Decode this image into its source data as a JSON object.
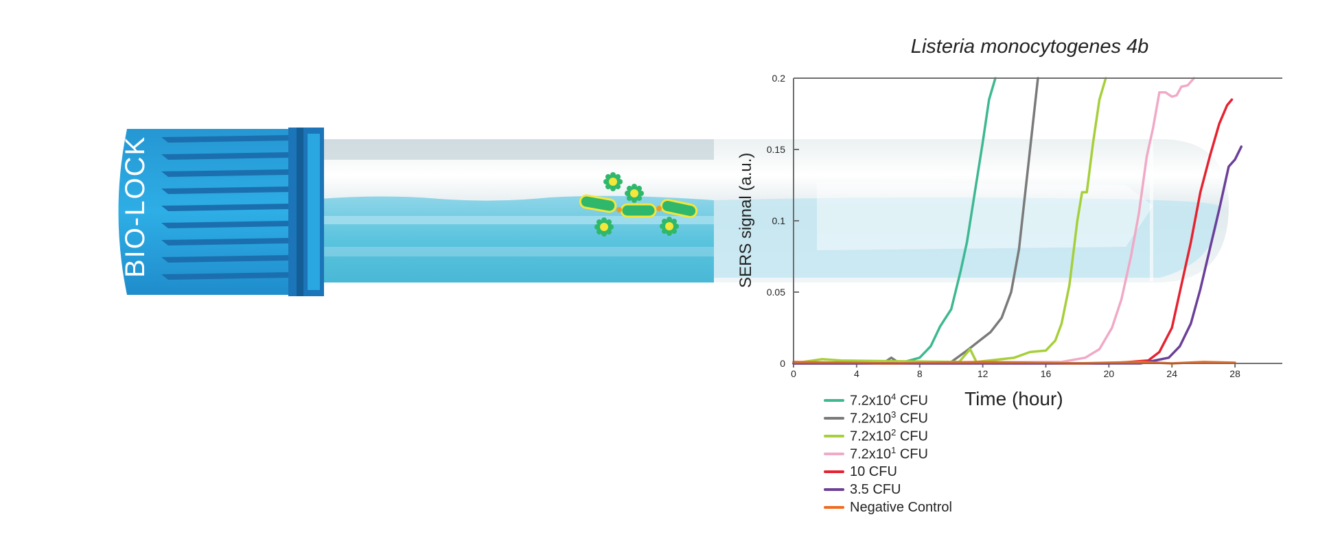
{
  "device": {
    "cap_label": "BIO-LOCK",
    "cap_color": "#2aa6e0",
    "cap_dark": "#1b75b8",
    "tube_liquid": "#5bc4de"
  },
  "chart_data": {
    "type": "line",
    "title": "Listeria monocytogenes 4b",
    "xlabel": "Time (hour)",
    "ylabel": "SERS signal (a.u.)",
    "xlim": [
      0,
      31
    ],
    "ylim": [
      0,
      0.2
    ],
    "xticks": [
      0,
      4,
      8,
      12,
      16,
      20,
      24,
      28
    ],
    "yticks": [
      0,
      0.05,
      0.1,
      0.15,
      0.2
    ],
    "ytick_labels": [
      "0",
      "0.05",
      "0.1",
      "0.15",
      "0.2"
    ],
    "grid": false,
    "legend_position": "bottom-left",
    "series": [
      {
        "name": "7.2x10^4 CFU",
        "base": "7.2x10",
        "exp": "4",
        "unit": " CFU",
        "color": "#3db891",
        "points": [
          [
            0,
            0
          ],
          [
            4,
            0
          ],
          [
            7,
            0.001
          ],
          [
            8,
            0.004
          ],
          [
            8.7,
            0.012
          ],
          [
            9.3,
            0.026
          ],
          [
            10,
            0.038
          ],
          [
            10.6,
            0.065
          ],
          [
            11,
            0.085
          ],
          [
            11.5,
            0.12
          ],
          [
            12,
            0.155
          ],
          [
            12.4,
            0.185
          ],
          [
            12.8,
            0.2
          ]
        ]
      },
      {
        "name": "7.2x10^3 CFU",
        "base": "7.2x10",
        "exp": "3",
        "unit": " CFU",
        "color": "#7a7a7a",
        "points": [
          [
            0,
            0
          ],
          [
            5.8,
            0.001
          ],
          [
            6.2,
            0.004
          ],
          [
            6.6,
            0.001
          ],
          [
            10,
            0.001
          ],
          [
            11,
            0.009
          ],
          [
            11.8,
            0.016
          ],
          [
            12.5,
            0.022
          ],
          [
            13.2,
            0.032
          ],
          [
            13.8,
            0.05
          ],
          [
            14.3,
            0.08
          ],
          [
            14.8,
            0.13
          ],
          [
            15.2,
            0.17
          ],
          [
            15.5,
            0.2
          ]
        ]
      },
      {
        "name": "7.2x10^2 CFU",
        "base": "7.2x10",
        "exp": "2",
        "unit": " CFU",
        "color": "#a6cf3a",
        "points": [
          [
            0,
            0
          ],
          [
            1.8,
            0.003
          ],
          [
            3,
            0.002
          ],
          [
            10.5,
            0.001
          ],
          [
            11.2,
            0.01
          ],
          [
            11.6,
            0.001
          ],
          [
            14,
            0.004
          ],
          [
            15,
            0.008
          ],
          [
            16,
            0.009
          ],
          [
            16.6,
            0.016
          ],
          [
            17,
            0.028
          ],
          [
            17.5,
            0.055
          ],
          [
            18,
            0.1
          ],
          [
            18.3,
            0.12
          ],
          [
            18.6,
            0.12
          ],
          [
            19,
            0.155
          ],
          [
            19.4,
            0.185
          ],
          [
            19.8,
            0.2
          ]
        ]
      },
      {
        "name": "7.2x10^1 CFU",
        "base": "7.2x10",
        "exp": "1",
        "unit": " CFU",
        "color": "#f0a9c6",
        "points": [
          [
            0,
            0
          ],
          [
            17,
            0.001
          ],
          [
            18.5,
            0.004
          ],
          [
            19.4,
            0.01
          ],
          [
            20.2,
            0.025
          ],
          [
            20.8,
            0.045
          ],
          [
            21.4,
            0.075
          ],
          [
            21.9,
            0.105
          ],
          [
            22.4,
            0.145
          ],
          [
            22.8,
            0.165
          ],
          [
            23.2,
            0.19
          ],
          [
            23.6,
            0.19
          ],
          [
            24,
            0.187
          ],
          [
            24.3,
            0.188
          ],
          [
            24.6,
            0.194
          ],
          [
            25,
            0.195
          ],
          [
            25.4,
            0.2
          ]
        ]
      },
      {
        "name": "10 CFU",
        "base": "10 CFU",
        "exp": "",
        "unit": "",
        "color": "#e52230",
        "points": [
          [
            0,
            0
          ],
          [
            20,
            0
          ],
          [
            22.5,
            0.002
          ],
          [
            23.2,
            0.008
          ],
          [
            24,
            0.025
          ],
          [
            24.6,
            0.055
          ],
          [
            25.2,
            0.085
          ],
          [
            25.8,
            0.12
          ],
          [
            26.4,
            0.145
          ],
          [
            27,
            0.168
          ],
          [
            27.5,
            0.181
          ],
          [
            27.8,
            0.185
          ]
        ]
      },
      {
        "name": "3.5 CFU",
        "base": "3.5 CFU",
        "exp": "",
        "unit": "",
        "color": "#6b3f98",
        "points": [
          [
            0,
            0
          ],
          [
            22,
            0
          ],
          [
            23.8,
            0.004
          ],
          [
            24.5,
            0.012
          ],
          [
            25.2,
            0.028
          ],
          [
            25.8,
            0.052
          ],
          [
            26.4,
            0.08
          ],
          [
            27,
            0.108
          ],
          [
            27.6,
            0.138
          ],
          [
            28,
            0.143
          ],
          [
            28.4,
            0.152
          ]
        ]
      },
      {
        "name": "Negative Control",
        "base": "Negative Control",
        "exp": "",
        "unit": "",
        "color": "#f06a1f",
        "points": [
          [
            0,
            0.001
          ],
          [
            6,
            0
          ],
          [
            12,
            0.001
          ],
          [
            18,
            0
          ],
          [
            22,
            0.001
          ],
          [
            24,
            0
          ],
          [
            26,
            0.001
          ],
          [
            28,
            0.0005
          ]
        ]
      }
    ]
  }
}
